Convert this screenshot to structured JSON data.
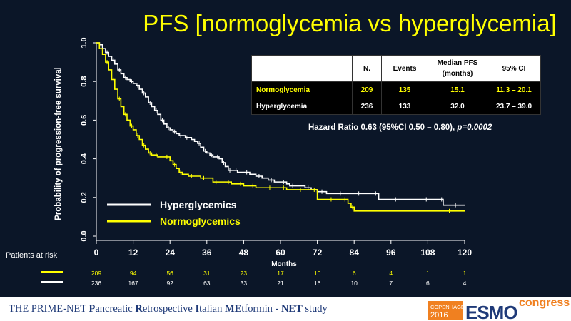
{
  "title": "PFS [normoglycemia vs hyperglycemia]",
  "table": {
    "headers": [
      "",
      "N.",
      "Events",
      "Median PFS\n(months)",
      "95% CI"
    ],
    "rows": [
      {
        "group": "Normoglycemia",
        "n": "209",
        "events": "135",
        "median": "15.1",
        "ci": "11.3 – 20.1"
      },
      {
        "group": "Hyperglycemia",
        "n": "236",
        "events": "133",
        "median": "32.0",
        "ci": "23.7 – 39.0"
      }
    ]
  },
  "hazard_ratio": {
    "text": "Hazard Ratio 0.63 (95%CI 0.50 – 0.80), ",
    "p_value": "p=0.0002"
  },
  "risk_table": {
    "label": "Patients at risk",
    "normoglycemia": [
      "209",
      "94",
      "56",
      "31",
      "23",
      "17",
      "10",
      "6",
      "4",
      "1",
      "1"
    ],
    "hyperglycemia": [
      "236",
      "167",
      "92",
      "63",
      "33",
      "21",
      "16",
      "10",
      "7",
      "6",
      "4"
    ]
  },
  "footer": {
    "prefix": "THE PRIME-NET ",
    "parts": [
      {
        "b": "P",
        "t": "ancreatic "
      },
      {
        "b": "R",
        "t": "etrospective "
      },
      {
        "b": "I",
        "t": "talian "
      },
      {
        "b": "ME",
        "t": "tformin - "
      },
      {
        "b": "NET",
        "t": " study"
      }
    ]
  },
  "logo": {
    "city": "COPENHAGEN",
    "year": "2016",
    "brand": "ESMO",
    "word": "congress"
  },
  "colors": {
    "background": "#0b1628",
    "accent": "#ffff00",
    "hyper": "#ffffff",
    "normo": "#ffff00",
    "logo_orange": "#f08020",
    "logo_blue": "#1f3a78"
  },
  "chart_data": {
    "type": "line",
    "subtype": "kaplan-meier-step",
    "xlabel": "Months",
    "ylabel": "Probability of progression-free survival",
    "xlim": [
      0,
      120
    ],
    "ylim": [
      0,
      1.0
    ],
    "xticks": [
      0,
      12,
      24,
      36,
      48,
      60,
      72,
      84,
      96,
      108,
      120
    ],
    "yticks": [
      "0.0",
      "0.2",
      "0.4",
      "0.6",
      "0.8",
      "1.0"
    ],
    "legend_position": "bottom-left",
    "series": [
      {
        "name": "Hyperglycemics",
        "color": "#ffffff",
        "x": [
          0,
          1,
          2,
          3,
          4,
          5,
          6,
          7,
          8,
          9,
          10,
          11,
          12,
          13,
          14,
          15,
          16,
          17,
          18,
          19,
          20,
          21,
          22,
          23,
          24,
          25,
          26,
          27,
          28,
          29,
          30,
          31,
          32,
          33,
          34,
          35,
          36,
          37,
          38,
          39,
          40,
          41,
          42,
          43,
          44,
          45,
          46,
          48,
          50,
          52,
          54,
          56,
          58,
          60,
          62,
          63,
          65,
          68,
          70,
          72,
          75,
          78,
          81,
          84,
          87,
          90,
          92,
          95,
          100,
          105,
          110,
          112,
          113,
          114,
          120
        ],
        "y": [
          1.0,
          0.99,
          0.97,
          0.95,
          0.93,
          0.91,
          0.89,
          0.86,
          0.84,
          0.82,
          0.81,
          0.8,
          0.79,
          0.78,
          0.76,
          0.74,
          0.72,
          0.69,
          0.67,
          0.65,
          0.63,
          0.6,
          0.58,
          0.56,
          0.55,
          0.54,
          0.53,
          0.52,
          0.52,
          0.51,
          0.51,
          0.5,
          0.49,
          0.48,
          0.46,
          0.44,
          0.43,
          0.42,
          0.41,
          0.41,
          0.4,
          0.38,
          0.36,
          0.34,
          0.34,
          0.34,
          0.33,
          0.33,
          0.32,
          0.31,
          0.3,
          0.29,
          0.28,
          0.28,
          0.27,
          0.26,
          0.26,
          0.25,
          0.24,
          0.23,
          0.22,
          0.22,
          0.22,
          0.22,
          0.22,
          0.22,
          0.19,
          0.19,
          0.19,
          0.19,
          0.19,
          0.19,
          0.16,
          0.16,
          0.16
        ]
      },
      {
        "name": "Normoglycemics",
        "color": "#ffff00",
        "x": [
          0,
          1,
          2,
          3,
          4,
          5,
          6,
          7,
          8,
          9,
          10,
          11,
          12,
          13,
          14,
          15,
          16,
          17,
          18,
          19,
          20,
          22,
          24,
          25,
          26,
          27,
          28,
          30,
          32,
          34,
          36,
          38,
          40,
          42,
          44,
          46,
          48,
          50,
          52,
          55,
          58,
          60,
          62,
          65,
          68,
          70,
          72,
          75,
          78,
          80,
          82,
          83,
          84,
          90,
          100,
          110,
          120
        ],
        "y": [
          1.0,
          0.97,
          0.94,
          0.9,
          0.86,
          0.81,
          0.76,
          0.71,
          0.67,
          0.63,
          0.6,
          0.57,
          0.55,
          0.52,
          0.5,
          0.47,
          0.45,
          0.43,
          0.42,
          0.42,
          0.41,
          0.41,
          0.39,
          0.37,
          0.35,
          0.33,
          0.32,
          0.31,
          0.31,
          0.3,
          0.3,
          0.28,
          0.28,
          0.28,
          0.27,
          0.27,
          0.26,
          0.26,
          0.25,
          0.25,
          0.25,
          0.25,
          0.24,
          0.24,
          0.24,
          0.24,
          0.19,
          0.19,
          0.19,
          0.19,
          0.17,
          0.15,
          0.13,
          0.13,
          0.13,
          0.13,
          0.13
        ]
      }
    ]
  }
}
